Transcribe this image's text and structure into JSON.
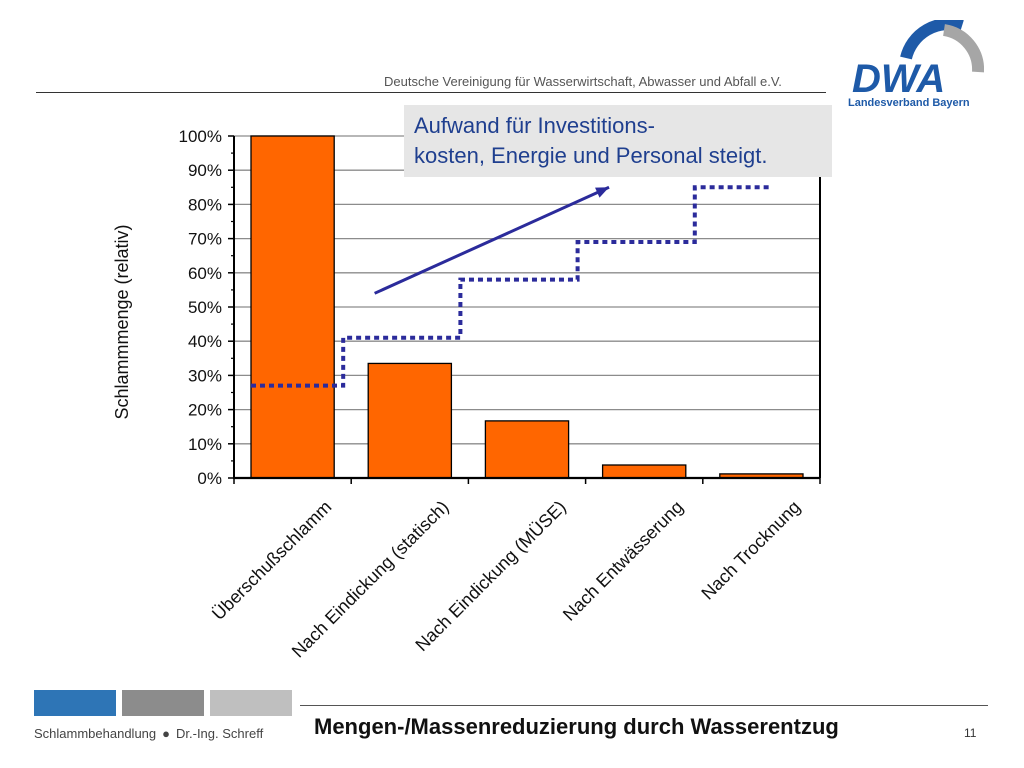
{
  "header": {
    "organization": "Deutsche Vereinigung für Wasserwirtschaft, Abwasser und Abfall e.V.",
    "logo_text": "DWA",
    "logo_subtitle": "Landesverband Bayern"
  },
  "callout": {
    "line1": "Aufwand für Investitions-",
    "line2": "kosten, Energie und Personal steigt."
  },
  "chart_data": {
    "type": "bar",
    "ylabel": "Schlammmenge (relativ)",
    "ylim": [
      0,
      100
    ],
    "y_ticks": [
      "0%",
      "10%",
      "20%",
      "30%",
      "40%",
      "50%",
      "60%",
      "70%",
      "80%",
      "90%",
      "100%"
    ],
    "categories": [
      "Überschußschlamm",
      "Nach Eindickung (statisch)",
      "Nach Eindickung (MÜSE)",
      "Nach Entwässerung",
      "Nach Trocknung"
    ],
    "values": [
      100,
      33.5,
      16.7,
      3.8,
      1.2
    ],
    "bar_color": "#ff6600",
    "grid": true,
    "effort_steps": [
      27,
      41,
      58,
      69,
      85
    ],
    "effort_color": "#2b2b9b",
    "trend_arrow": {
      "from": [
        1.2,
        54
      ],
      "to": [
        3.2,
        85
      ]
    }
  },
  "footer": {
    "topic": "Schlammbehandlung",
    "author": "Dr.-Ing. Schreff",
    "slide_title": "Mengen-/Massenreduzierung durch Wasserentzug",
    "page_number": "11",
    "block_colors": [
      "#2e75b6",
      "#8c8c8c",
      "#bfbfbf"
    ]
  }
}
